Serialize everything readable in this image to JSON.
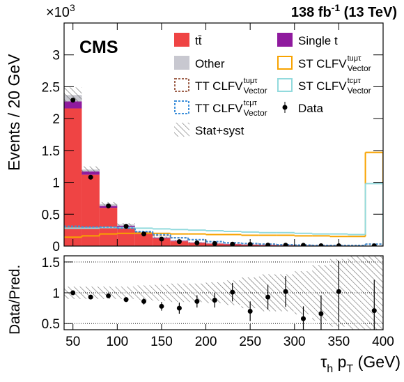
{
  "chart_data": [
    {
      "type": "histogram",
      "multiplier": "×10",
      "multiplier_exp": "3",
      "lumi": "138 fb",
      "lumi_exp": "-1",
      "energy": " (13 TeV)",
      "experiment": "CMS",
      "y_label": "Events / 20 GeV",
      "ylim": [
        0,
        3.5
      ],
      "yticks": [
        0,
        0.5,
        1,
        1.5,
        2,
        2.5,
        3
      ],
      "bins": [
        40,
        60,
        80,
        100,
        120,
        140,
        160,
        180,
        200,
        220,
        240,
        260,
        280,
        300,
        320,
        340,
        360,
        380,
        400
      ],
      "series": [
        {
          "name": "tt̄",
          "color": "#ef4444",
          "stack": true,
          "values": [
            2.16,
            1.12,
            0.6,
            0.3,
            0.19,
            0.12,
            0.075,
            0.05,
            0.037,
            0.028,
            0.02,
            0.015,
            0.011,
            0.009,
            0.007,
            0.006,
            0.005,
            0.004
          ]
        },
        {
          "name": "Single t",
          "color": "#8f1a9e",
          "stack": true,
          "values": [
            0.11,
            0.05,
            0.03,
            0.02,
            0.015,
            0.01,
            0.008,
            0.005,
            0.004,
            0.004,
            0.003,
            0.003,
            0.002,
            0.002,
            0.002,
            0.001,
            0.001,
            0.001
          ]
        },
        {
          "name": "Other",
          "color": "#c8c8d0",
          "stack": true,
          "values": [
            0.1,
            0.03,
            0.03,
            0.02,
            0.015,
            0.01,
            0.007,
            0.005,
            0.004,
            0.003,
            0.002,
            0.002,
            0.002,
            0.001,
            0.001,
            0.001,
            0.001,
            0.001
          ]
        },
        {
          "name": "ST CLFV",
          "name_sup": "tuμτ",
          "name_sub": "Vector",
          "color": "#f8a300",
          "dashed": false,
          "values": [
            0.14,
            0.16,
            0.19,
            0.2,
            0.2,
            0.2,
            0.19,
            0.19,
            0.18,
            0.18,
            0.17,
            0.17,
            0.17,
            0.16,
            0.16,
            0.15,
            0.15,
            1.47
          ]
        },
        {
          "name": "TT CLFV",
          "name_sup": "tuμτ",
          "name_sub": "Vector",
          "color": "#a0644f",
          "dashed": true,
          "values": [
            0.3,
            0.29,
            0.3,
            0.28,
            0.22,
            0.17,
            0.13,
            0.1,
            0.07,
            0.05,
            0.04,
            0.03,
            0.02,
            0.015,
            0.01,
            0.01,
            0.01,
            0.03
          ]
        },
        {
          "name": "ST CLFV",
          "name_sup": "tcμτ",
          "name_sub": "Vector",
          "color": "#92dadd",
          "dashed": false,
          "values": [
            0.28,
            0.28,
            0.29,
            0.29,
            0.28,
            0.27,
            0.26,
            0.25,
            0.24,
            0.23,
            0.22,
            0.21,
            0.21,
            0.2,
            0.19,
            0.19,
            0.18,
            0.98
          ]
        },
        {
          "name": "TT CLFV",
          "name_sup": "tcμτ",
          "name_sub": "Vector",
          "color": "#3f90da",
          "dashed": true,
          "values": [
            0.31,
            0.3,
            0.3,
            0.28,
            0.23,
            0.18,
            0.13,
            0.1,
            0.07,
            0.05,
            0.04,
            0.03,
            0.02,
            0.015,
            0.01,
            0.01,
            0.01,
            0.03
          ]
        }
      ],
      "data": {
        "name": "Data",
        "color": "#000000",
        "values": [
          2.29,
          1.08,
          0.63,
          0.31,
          0.19,
          0.11,
          0.07,
          0.05,
          0.04,
          0.03,
          0.026,
          0.015,
          0.014,
          0.012,
          0.006,
          0.005,
          null,
          0.004
        ]
      },
      "uncertainty": {
        "name": "Stat+syst",
        "values": [
          0.12,
          0.05,
          0.03,
          0.02,
          0.015,
          0.01,
          0.008,
          0.006,
          0.005,
          0.005,
          0.004,
          0.004,
          0.003,
          0.003,
          0.003,
          0.003,
          0.003,
          0.003
        ]
      }
    },
    {
      "type": "ratio",
      "y_label": "Data/Pred.",
      "x_label": "τ",
      "x_label_sub": "h",
      "x_label_mid": " p",
      "x_label_sub2": "T",
      "x_label_end": " (GeV)",
      "xlim": [
        40,
        400
      ],
      "xticks": [
        50,
        100,
        150,
        200,
        250,
        300,
        350,
        400
      ],
      "ylim": [
        0.4,
        1.6
      ],
      "yticks": [
        0.5,
        1,
        1.5
      ],
      "x": [
        50,
        70,
        90,
        110,
        130,
        150,
        170,
        190,
        210,
        230,
        250,
        270,
        290,
        310,
        330,
        350,
        370,
        390
      ],
      "values": [
        1.0,
        0.93,
        0.95,
        0.89,
        0.86,
        0.78,
        0.75,
        0.86,
        0.88,
        1.01,
        0.7,
        0.93,
        1.02,
        0.58,
        0.66,
        1.02,
        null,
        0.71
      ],
      "errors": [
        0.02,
        0.02,
        0.03,
        0.04,
        0.05,
        0.07,
        0.09,
        0.1,
        0.12,
        0.15,
        0.16,
        0.2,
        0.25,
        0.2,
        0.3,
        0.5,
        null,
        0.5
      ],
      "band": [
        0.1,
        0.1,
        0.1,
        0.1,
        0.12,
        0.13,
        0.15,
        0.15,
        0.17,
        0.2,
        0.25,
        0.3,
        0.3,
        0.35,
        0.45,
        0.55,
        0.6,
        0.6
      ]
    }
  ]
}
